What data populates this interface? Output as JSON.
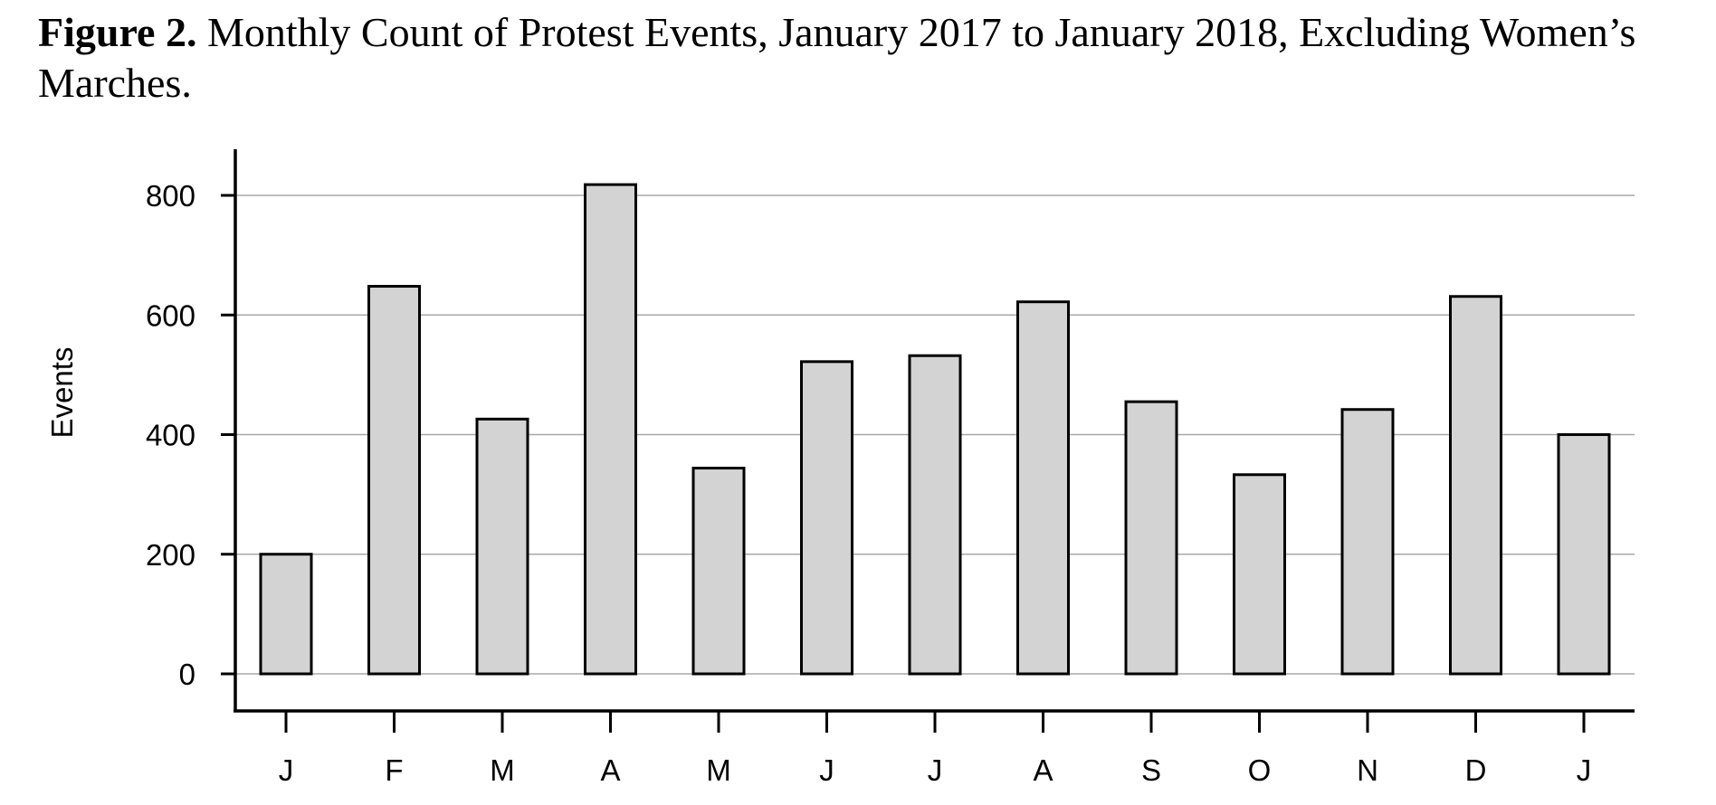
{
  "caption": {
    "label": "Figure 2.",
    "text": " Monthly Count of Protest Events, January 2017 to January 2018, Excluding Women’s Marches."
  },
  "chart_data": {
    "type": "bar",
    "title": "",
    "xlabel": "",
    "ylabel": "Events",
    "categories": [
      "J",
      "F",
      "M",
      "A",
      "M",
      "J",
      "J",
      "A",
      "S",
      "O",
      "N",
      "D",
      "J"
    ],
    "values": [
      200,
      648,
      426,
      818,
      344,
      522,
      532,
      622,
      455,
      333,
      442,
      631,
      400
    ],
    "ylim": [
      0,
      800
    ],
    "yticks": [
      0,
      200,
      400,
      600,
      800
    ],
    "grid": true,
    "bar_fill": "#d3d3d3",
    "bar_stroke": "#000000",
    "grid_color": "#a8a8a8"
  }
}
